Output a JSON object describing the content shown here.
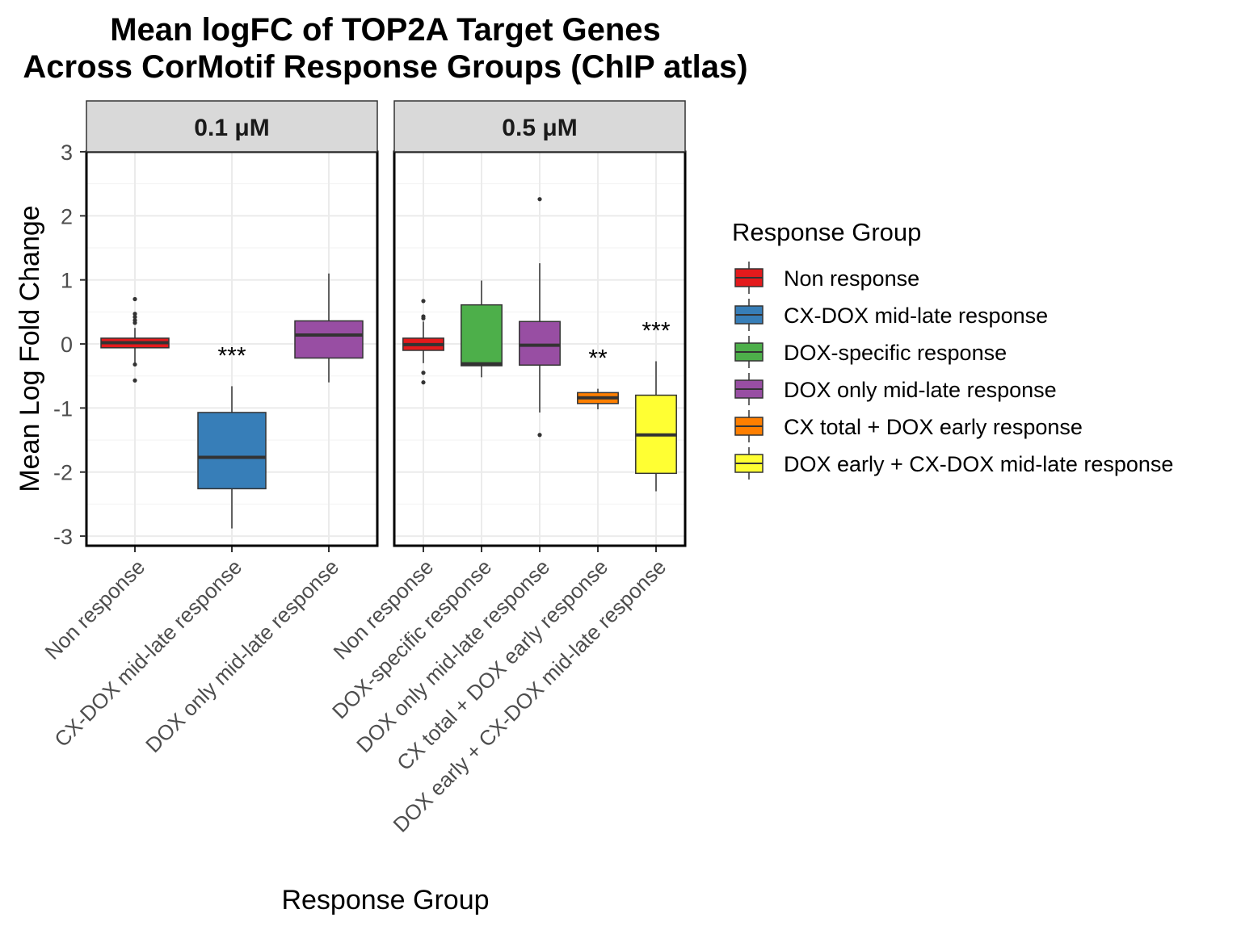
{
  "chart_data": {
    "type": "boxplot",
    "title": "Mean logFC of TOP2A Target Genes",
    "subtitle": "Across CorMotif Response Groups (ChIP atlas)",
    "xlabel": "Response Group",
    "ylabel": "Mean Log Fold Change",
    "ylim": [
      -3.15,
      3
    ],
    "yticks": [
      "3",
      "2",
      "1",
      "0",
      "-1",
      "-2",
      "-3"
    ],
    "grid": true,
    "legend": {
      "title": "Response Group",
      "position": "right",
      "items": [
        {
          "label": "Non response",
          "color": "#E41A1C"
        },
        {
          "label": "CX-DOX mid-late response",
          "color": "#377EB8"
        },
        {
          "label": "DOX-specific response",
          "color": "#4DAF4A"
        },
        {
          "label": "DOX only mid-late response",
          "color": "#984EA3"
        },
        {
          "label": "CX total + DOX early response",
          "color": "#FF7F00"
        },
        {
          "label": "DOX early + CX-DOX mid-late response",
          "color": "#FFFF33"
        }
      ]
    },
    "panels": [
      {
        "label": "0.1 μM",
        "categories": [
          "Non response",
          "CX-DOX mid-late response",
          "DOX only mid-late response"
        ],
        "boxes": [
          {
            "category": "Non response",
            "color": "#E41A1C",
            "whisker_low": -0.3,
            "q1": -0.06,
            "median": 0.02,
            "q3": 0.09,
            "whisker_high": 0.25,
            "outliers": [
              0.7,
              0.47,
              0.42,
              0.37,
              0.33,
              -0.32,
              -0.57
            ],
            "annotation": ""
          },
          {
            "category": "CX-DOX mid-late response",
            "color": "#377EB8",
            "whisker_low": -2.88,
            "q1": -2.26,
            "median": -1.77,
            "q3": -1.07,
            "whisker_high": -0.66,
            "outliers": [],
            "annotation": "***"
          },
          {
            "category": "DOX only mid-late response",
            "color": "#984EA3",
            "whisker_low": -0.6,
            "q1": -0.22,
            "median": 0.14,
            "q3": 0.36,
            "whisker_high": 1.1,
            "outliers": [],
            "annotation": ""
          }
        ]
      },
      {
        "label": "0.5 μM",
        "categories": [
          "Non response",
          "DOX-specific response",
          "DOX only mid-late response",
          "CX total + DOX early response",
          "DOX early + CX-DOX mid-late response"
        ],
        "boxes": [
          {
            "category": "Non response",
            "color": "#E41A1C",
            "whisker_low": -0.3,
            "q1": -0.1,
            "median": -0.01,
            "q3": 0.09,
            "whisker_high": 0.35,
            "outliers": [
              0.67,
              0.43,
              0.4,
              -0.45,
              -0.6
            ],
            "annotation": ""
          },
          {
            "category": "DOX-specific response",
            "color": "#4DAF4A",
            "whisker_low": -0.52,
            "q1": -0.34,
            "median": -0.31,
            "q3": 0.61,
            "whisker_high": 0.99,
            "outliers": [],
            "annotation": ""
          },
          {
            "category": "DOX only mid-late response",
            "color": "#984EA3",
            "whisker_low": -1.07,
            "q1": -0.33,
            "median": -0.02,
            "q3": 0.35,
            "whisker_high": 1.26,
            "outliers": [
              2.26,
              -1.42
            ],
            "annotation": ""
          },
          {
            "category": "CX total + DOX early response",
            "color": "#FF7F00",
            "whisker_low": -1.02,
            "q1": -0.93,
            "median": -0.84,
            "q3": -0.76,
            "whisker_high": -0.7,
            "outliers": [],
            "annotation": "**"
          },
          {
            "category": "DOX early + CX-DOX mid-late response",
            "color": "#FFFF33",
            "whisker_low": -2.3,
            "q1": -2.02,
            "median": -1.42,
            "q3": -0.8,
            "whisker_high": -0.27,
            "outliers": [],
            "annotation": "***"
          }
        ]
      }
    ]
  }
}
